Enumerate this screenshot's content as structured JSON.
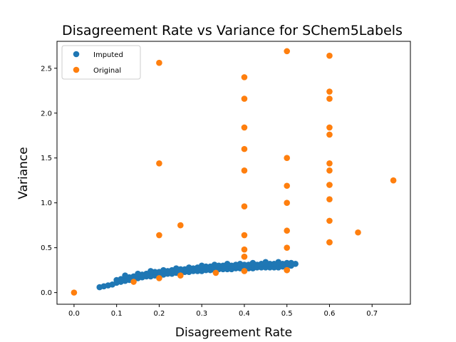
{
  "chart_data": {
    "type": "scatter",
    "title": "Disagreement Rate vs Variance for SChem5Labels",
    "xlabel": "Disagreement Rate",
    "ylabel": "Variance",
    "xlim": [
      -0.04,
      0.79
    ],
    "ylim": [
      -0.13,
      2.8
    ],
    "xticks": [
      0.0,
      0.1,
      0.2,
      0.3,
      0.4,
      0.5,
      0.6,
      0.7
    ],
    "yticks": [
      0.0,
      0.5,
      1.0,
      1.5,
      2.0,
      2.5
    ],
    "grid": false,
    "legend": {
      "position": "top-left"
    },
    "series": [
      {
        "name": "Imputed",
        "color": "#1f77b4",
        "x": [
          0.06,
          0.07,
          0.08,
          0.09,
          0.1,
          0.11,
          0.12,
          0.13,
          0.14,
          0.15,
          0.16,
          0.17,
          0.18,
          0.19,
          0.2,
          0.21,
          0.22,
          0.23,
          0.24,
          0.25,
          0.26,
          0.27,
          0.28,
          0.29,
          0.3,
          0.31,
          0.32,
          0.33,
          0.34,
          0.35,
          0.36,
          0.37,
          0.38,
          0.39,
          0.4,
          0.41,
          0.42,
          0.43,
          0.44,
          0.45,
          0.46,
          0.47,
          0.48,
          0.49,
          0.5,
          0.51,
          0.52,
          0.1,
          0.12,
          0.14,
          0.16,
          0.18,
          0.2,
          0.22,
          0.24,
          0.26,
          0.28,
          0.3,
          0.32,
          0.34,
          0.36,
          0.38,
          0.4,
          0.42,
          0.44,
          0.46,
          0.48,
          0.5,
          0.11,
          0.13,
          0.15,
          0.17,
          0.19,
          0.21,
          0.23,
          0.25,
          0.27,
          0.29,
          0.31,
          0.33,
          0.35,
          0.37,
          0.39,
          0.41,
          0.43,
          0.45,
          0.47,
          0.49,
          0.51,
          0.12,
          0.15,
          0.18,
          0.21,
          0.24,
          0.27,
          0.3,
          0.33,
          0.36,
          0.39,
          0.42,
          0.45,
          0.48
        ],
        "y": [
          0.06,
          0.07,
          0.08,
          0.09,
          0.11,
          0.12,
          0.13,
          0.14,
          0.15,
          0.16,
          0.17,
          0.18,
          0.18,
          0.19,
          0.2,
          0.2,
          0.21,
          0.21,
          0.22,
          0.22,
          0.23,
          0.23,
          0.24,
          0.24,
          0.24,
          0.25,
          0.25,
          0.25,
          0.26,
          0.26,
          0.26,
          0.26,
          0.27,
          0.27,
          0.27,
          0.27,
          0.27,
          0.28,
          0.28,
          0.28,
          0.28,
          0.28,
          0.28,
          0.29,
          0.29,
          0.3,
          0.32,
          0.14,
          0.16,
          0.18,
          0.2,
          0.22,
          0.23,
          0.24,
          0.25,
          0.26,
          0.27,
          0.28,
          0.29,
          0.3,
          0.3,
          0.31,
          0.31,
          0.31,
          0.32,
          0.32,
          0.32,
          0.33,
          0.15,
          0.17,
          0.19,
          0.21,
          0.23,
          0.24,
          0.25,
          0.26,
          0.27,
          0.28,
          0.29,
          0.29,
          0.3,
          0.3,
          0.31,
          0.31,
          0.31,
          0.32,
          0.32,
          0.32,
          0.33,
          0.19,
          0.21,
          0.24,
          0.25,
          0.27,
          0.28,
          0.3,
          0.31,
          0.32,
          0.32,
          0.33,
          0.34,
          0.34
        ]
      },
      {
        "name": "Original",
        "color": "#ff7f0e",
        "x": [
          0.0,
          0.14,
          0.2,
          0.2,
          0.2,
          0.2,
          0.25,
          0.25,
          0.333,
          0.4,
          0.4,
          0.4,
          0.4,
          0.4,
          0.4,
          0.4,
          0.4,
          0.4,
          0.4,
          0.4,
          0.5,
          0.5,
          0.5,
          0.5,
          0.5,
          0.5,
          0.5,
          0.5,
          0.6,
          0.6,
          0.6,
          0.6,
          0.6,
          0.6,
          0.6,
          0.6,
          0.6,
          0.6,
          0.6,
          0.6,
          0.6,
          0.667,
          0.75
        ],
        "y": [
          0.0,
          0.12,
          0.16,
          0.64,
          1.44,
          2.56,
          0.19,
          0.75,
          0.22,
          0.24,
          0.4,
          0.48,
          0.64,
          0.96,
          1.36,
          1.6,
          1.84,
          2.16,
          2.4,
          0.4,
          0.25,
          0.5,
          0.69,
          1.0,
          1.19,
          1.5,
          2.69,
          0.25,
          0.56,
          0.8,
          1.04,
          1.2,
          1.36,
          1.44,
          1.76,
          1.84,
          2.16,
          2.24,
          2.64,
          0.56,
          1.2,
          0.67,
          1.25
        ]
      }
    ]
  }
}
